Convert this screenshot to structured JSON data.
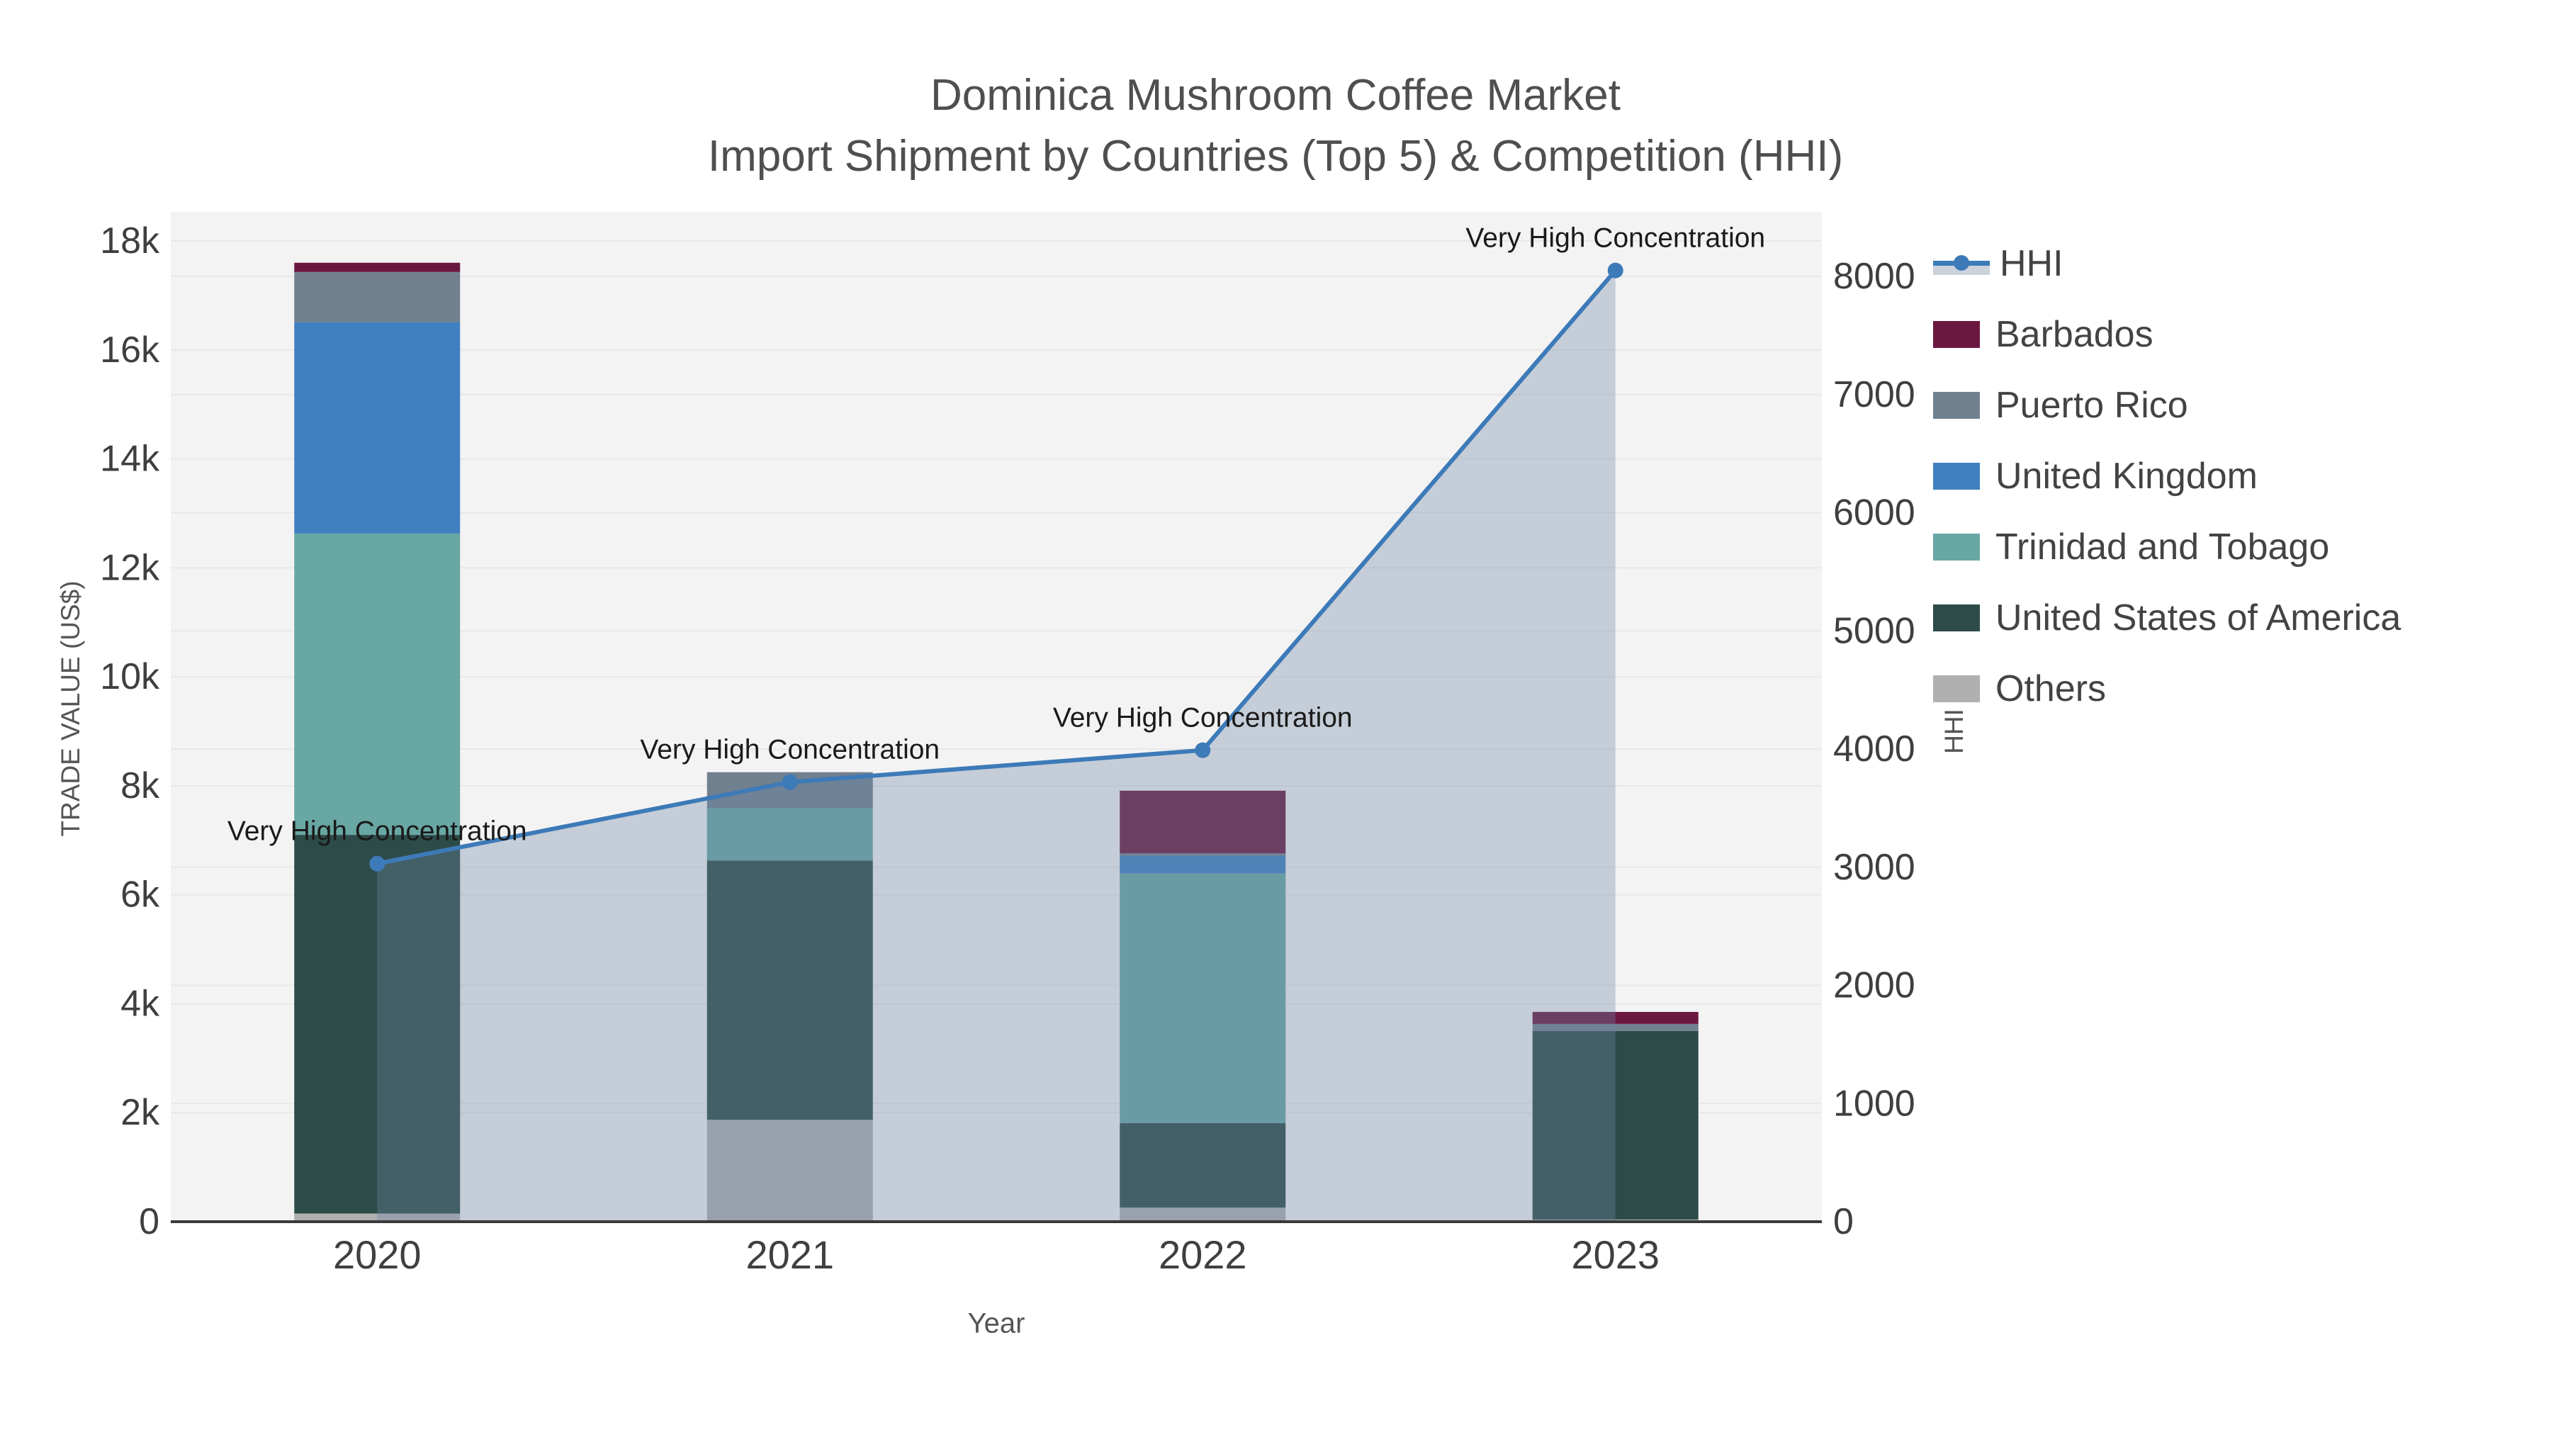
{
  "title": {
    "line1": "Dominica Mushroom Coffee Market",
    "line2": "Import Shipment by Countries (Top 5) & Competition (HHI)"
  },
  "axes": {
    "x": {
      "title": "Year",
      "categories": [
        "2020",
        "2021",
        "2022",
        "2023"
      ]
    },
    "y_left": {
      "title": "TRADE VALUE (US$)",
      "tick_labels": [
        "0",
        "2k",
        "4k",
        "6k",
        "8k",
        "10k",
        "12k",
        "14k",
        "16k",
        "18k"
      ],
      "tick_values": [
        0,
        2000,
        4000,
        6000,
        8000,
        10000,
        12000,
        14000,
        16000,
        18000
      ],
      "max": 18000
    },
    "y_right": {
      "title": "HHI",
      "tick_labels": [
        "0",
        "1000",
        "2000",
        "3000",
        "4000",
        "5000",
        "6000",
        "7000",
        "8000"
      ],
      "tick_values": [
        0,
        1000,
        2000,
        3000,
        4000,
        5000,
        6000,
        7000,
        8000
      ],
      "max": 8000
    }
  },
  "legend": [
    {
      "label": "HHI",
      "type": "line",
      "color": "#3d7ab8"
    },
    {
      "label": "Barbados",
      "type": "swatch",
      "color": "#6b1840"
    },
    {
      "label": "Puerto Rico",
      "type": "swatch",
      "color": "#71808f"
    },
    {
      "label": "United Kingdom",
      "type": "swatch",
      "color": "#4080c0"
    },
    {
      "label": "Trinidad and Tobago",
      "type": "swatch",
      "color": "#68a7a3"
    },
    {
      "label": "United States of America",
      "type": "swatch",
      "color": "#2d4c49"
    },
    {
      "label": "Others",
      "type": "swatch",
      "color": "#b0b0b0"
    }
  ],
  "chart_data": {
    "type": "bar+line",
    "categories": [
      "2020",
      "2021",
      "2022",
      "2023"
    ],
    "bar_stack_order_bottom_to_top": [
      "Others",
      "United States of America",
      "Trinidad and Tobago",
      "United Kingdom",
      "Puerto Rico",
      "Barbados"
    ],
    "bar_series": [
      {
        "name": "Others",
        "color": "#b0b0b0",
        "values": [
          150,
          1870,
          260,
          40
        ]
      },
      {
        "name": "United States of America",
        "color": "#2d4c49",
        "values": [
          6950,
          4760,
          1550,
          3460
        ]
      },
      {
        "name": "Trinidad and Tobago",
        "color": "#68a7a3",
        "values": [
          5530,
          960,
          4580,
          0
        ]
      },
      {
        "name": "United Kingdom",
        "color": "#4080c0",
        "values": [
          3880,
          0,
          320,
          0
        ]
      },
      {
        "name": "Puerto Rico",
        "color": "#71808f",
        "values": [
          920,
          660,
          50,
          130
        ]
      },
      {
        "name": "Barbados",
        "color": "#6b1840",
        "values": [
          170,
          0,
          1150,
          220
        ]
      }
    ],
    "bar_totals": [
      17600,
      8250,
      7910,
      3850
    ],
    "line_series": {
      "name": "HHI",
      "axis": "right",
      "color": "#3d7ab8",
      "area_fill": "rgba(110,135,165,0.35)",
      "values": [
        3030,
        3720,
        3990,
        8050
      ]
    },
    "annotations": [
      {
        "text": "Very High Concentration",
        "category": "2020",
        "value": 3030
      },
      {
        "text": "Very High Concentration",
        "category": "2021",
        "value": 3720
      },
      {
        "text": "Very High Concentration",
        "category": "2022",
        "value": 3990
      },
      {
        "text": "Very High Concentration",
        "category": "2023",
        "value": 8050
      }
    ],
    "xlabel": "Year",
    "ylabel_left": "TRADE VALUE (US$)",
    "ylabel_right": "HHI",
    "ylim_left": [
      0,
      18000
    ],
    "ylim_right": [
      0,
      8000
    ],
    "grid": true,
    "legend_position": "right"
  },
  "colors": {
    "figure_bg": "#ffffff",
    "plot_bg": "#f4f3f3",
    "grid": "#e8e8e8",
    "axis_line": "#3a3a3a",
    "tick_text": "#3f3f3f",
    "title_text": "#4f4f4f",
    "annotation_text": "#1a1a1a"
  }
}
